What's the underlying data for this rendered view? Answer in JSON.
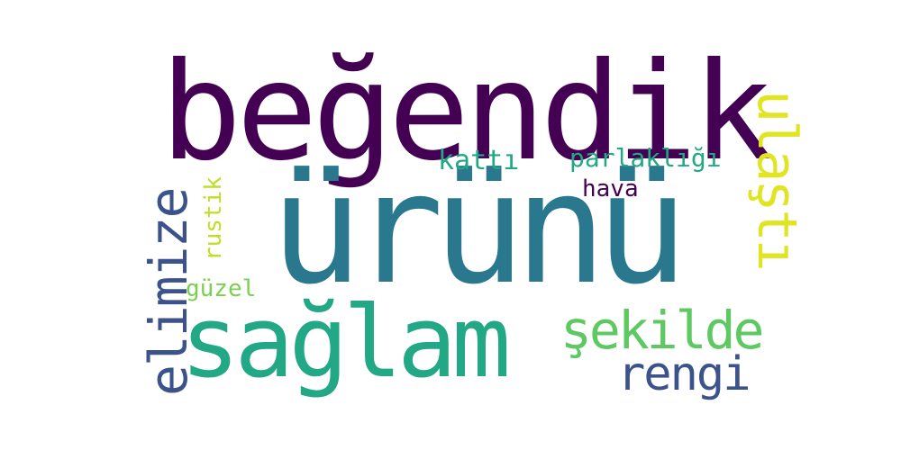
{
  "wordcloud": {
    "words": [
      {
        "id": "begendik",
        "text": "beğendik",
        "color": "#440154"
      },
      {
        "id": "urunu",
        "text": "ürünü",
        "color": "#2a788e"
      },
      {
        "id": "saglam",
        "text": "sağlam",
        "color": "#22a884"
      },
      {
        "id": "elimize",
        "text": "elimize",
        "color": "#3b528b"
      },
      {
        "id": "ulasti",
        "text": "ulaştı",
        "color": "#e0e421"
      },
      {
        "id": "sekilde",
        "text": "şekilde",
        "color": "#5ec962"
      },
      {
        "id": "rengi",
        "text": "rengi",
        "color": "#3b528b"
      },
      {
        "id": "katti",
        "text": "kattı",
        "color": "#22a884"
      },
      {
        "id": "parlakligi",
        "text": "parlaklığı",
        "color": "#22a884"
      },
      {
        "id": "hava",
        "text": "hava",
        "color": "#440154"
      },
      {
        "id": "rustik",
        "text": "rustik",
        "color": "#bddf26"
      },
      {
        "id": "guzel",
        "text": "güzel",
        "color": "#7ad151"
      }
    ]
  }
}
